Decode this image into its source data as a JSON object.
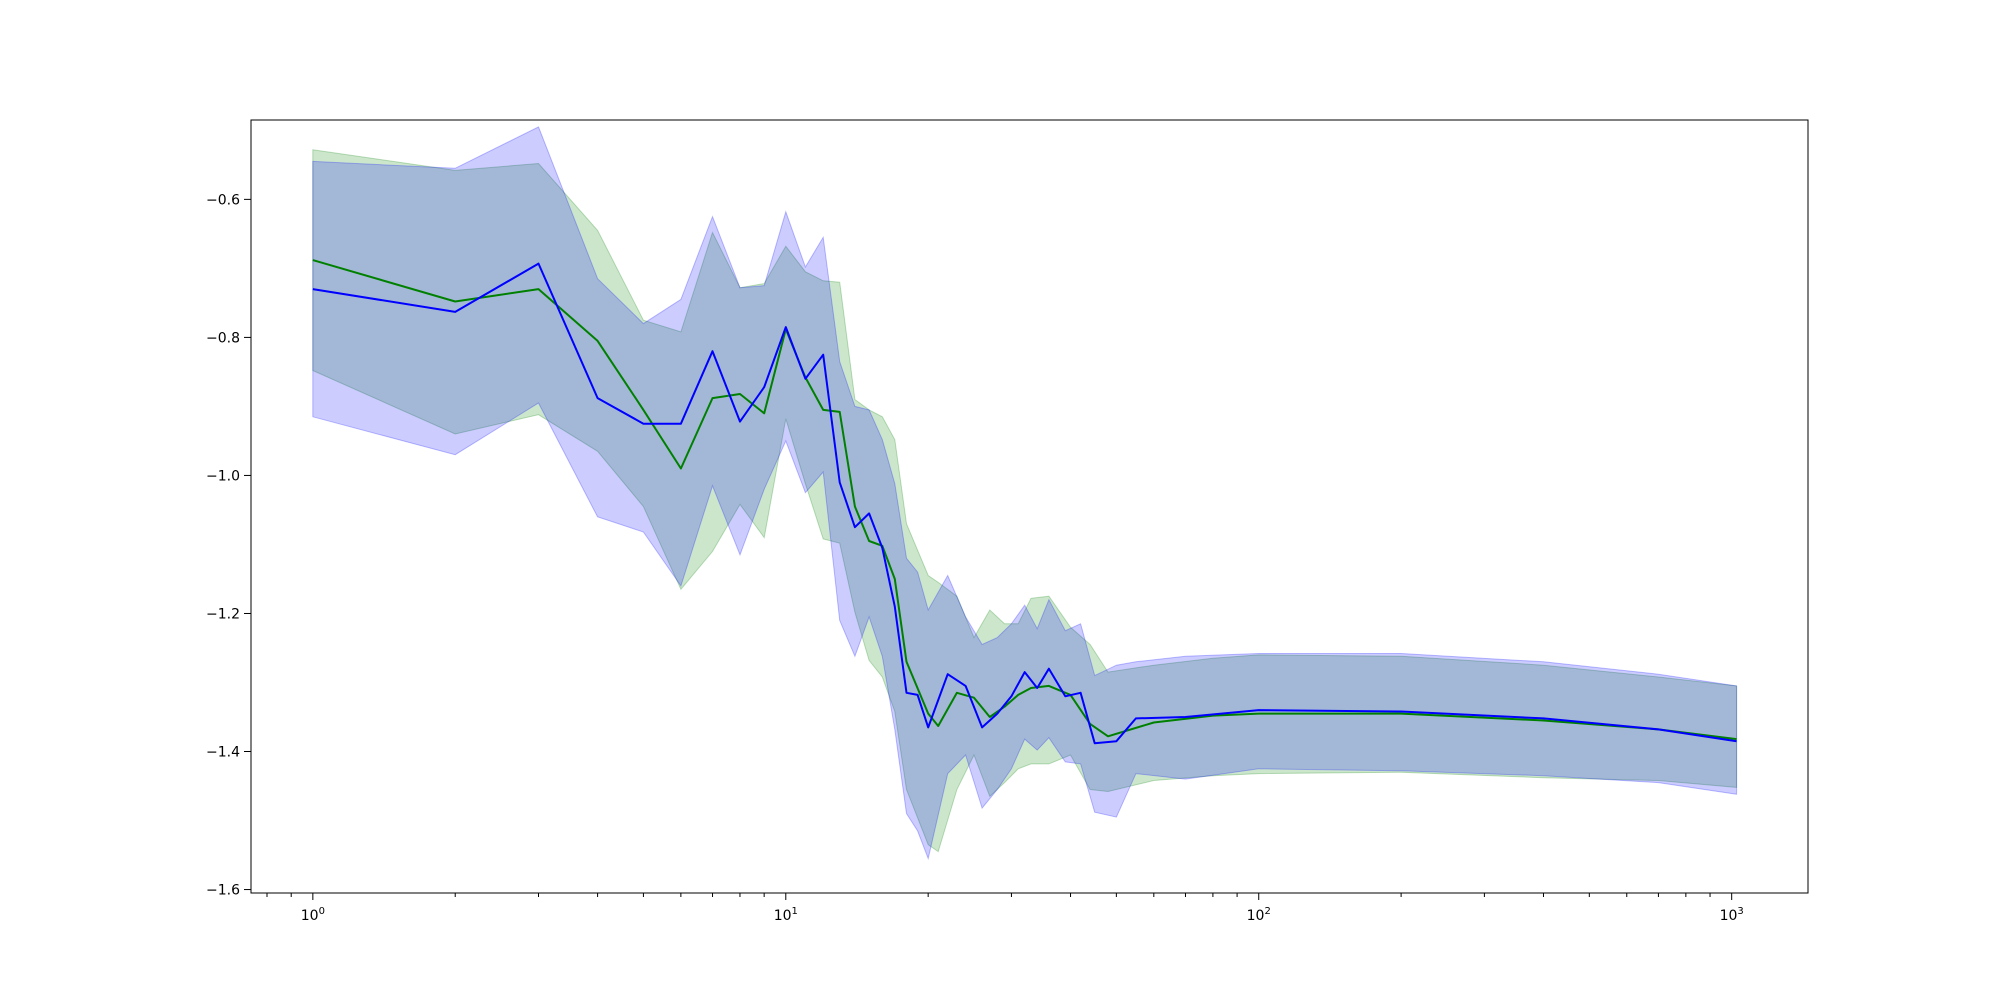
{
  "chart_data": {
    "type": "line",
    "title": "",
    "xlabel": "",
    "ylabel": "",
    "x_scale": "log",
    "xlim": [
      0.74,
      1450
    ],
    "ylim": [
      -1.605,
      -0.485
    ],
    "grid": false,
    "legend": "none",
    "x_major_ticks": [
      1,
      10,
      100,
      1000
    ],
    "x_tick_labels": [
      {
        "base": "10",
        "exp": "0"
      },
      {
        "base": "10",
        "exp": "1"
      },
      {
        "base": "10",
        "exp": "2"
      },
      {
        "base": "10",
        "exp": "3"
      }
    ],
    "y_ticks": [
      -1.6,
      -1.4,
      -1.2,
      -1.0,
      -0.8,
      -0.6
    ],
    "y_tick_labels": [
      "−1.6",
      "−1.4",
      "−1.2",
      "−1.0",
      "−0.8",
      "−0.6"
    ],
    "series": [
      {
        "color": "#008000",
        "band_color": "#008000",
        "band_opacity": 0.2,
        "points": [
          [
            1,
            -0.688
          ],
          [
            2,
            -0.748
          ],
          [
            3,
            -0.73
          ],
          [
            4,
            -0.805
          ],
          [
            5,
            -0.905
          ],
          [
            6,
            -0.99
          ],
          [
            7,
            -0.888
          ],
          [
            8,
            -0.882
          ],
          [
            9,
            -0.91
          ],
          [
            10,
            -0.788
          ],
          [
            11,
            -0.858
          ],
          [
            12,
            -0.905
          ],
          [
            13,
            -0.908
          ],
          [
            14,
            -1.045
          ],
          [
            15,
            -1.095
          ],
          [
            16,
            -1.102
          ],
          [
            17,
            -1.15
          ],
          [
            18,
            -1.27
          ],
          [
            20,
            -1.345
          ],
          [
            21,
            -1.363
          ],
          [
            23,
            -1.315
          ],
          [
            25,
            -1.322
          ],
          [
            27,
            -1.35
          ],
          [
            29,
            -1.335
          ],
          [
            31,
            -1.318
          ],
          [
            33,
            -1.308
          ],
          [
            36,
            -1.305
          ],
          [
            40,
            -1.318
          ],
          [
            44,
            -1.36
          ],
          [
            48,
            -1.378
          ],
          [
            60,
            -1.358
          ],
          [
            80,
            -1.348
          ],
          [
            100,
            -1.345
          ],
          [
            200,
            -1.345
          ],
          [
            400,
            -1.355
          ],
          [
            700,
            -1.368
          ],
          [
            1024,
            -1.382
          ]
        ],
        "upper": [
          [
            1,
            -0.528
          ],
          [
            2,
            -0.558
          ],
          [
            3,
            -0.548
          ],
          [
            4,
            -0.645
          ],
          [
            5,
            -0.775
          ],
          [
            6,
            -0.792
          ],
          [
            7,
            -0.648
          ],
          [
            8,
            -0.728
          ],
          [
            9,
            -0.722
          ],
          [
            10,
            -0.668
          ],
          [
            11,
            -0.705
          ],
          [
            12,
            -0.718
          ],
          [
            13,
            -0.72
          ],
          [
            14,
            -0.89
          ],
          [
            15,
            -0.905
          ],
          [
            16,
            -0.915
          ],
          [
            17,
            -0.948
          ],
          [
            18,
            -1.07
          ],
          [
            20,
            -1.145
          ],
          [
            21,
            -1.155
          ],
          [
            23,
            -1.175
          ],
          [
            25,
            -1.235
          ],
          [
            27,
            -1.195
          ],
          [
            29,
            -1.215
          ],
          [
            31,
            -1.215
          ],
          [
            33,
            -1.178
          ],
          [
            36,
            -1.175
          ],
          [
            40,
            -1.22
          ],
          [
            44,
            -1.245
          ],
          [
            48,
            -1.285
          ],
          [
            60,
            -1.275
          ],
          [
            80,
            -1.265
          ],
          [
            100,
            -1.26
          ],
          [
            200,
            -1.262
          ],
          [
            400,
            -1.275
          ],
          [
            700,
            -1.292
          ],
          [
            1024,
            -1.305
          ]
        ],
        "lower": [
          [
            1,
            -0.848
          ],
          [
            2,
            -0.94
          ],
          [
            3,
            -0.912
          ],
          [
            4,
            -0.965
          ],
          [
            5,
            -1.045
          ],
          [
            6,
            -1.165
          ],
          [
            7,
            -1.11
          ],
          [
            8,
            -1.042
          ],
          [
            9,
            -1.09
          ],
          [
            10,
            -0.918
          ],
          [
            11,
            -1.012
          ],
          [
            12,
            -1.092
          ],
          [
            13,
            -1.098
          ],
          [
            14,
            -1.198
          ],
          [
            15,
            -1.268
          ],
          [
            16,
            -1.292
          ],
          [
            17,
            -1.342
          ],
          [
            18,
            -1.455
          ],
          [
            20,
            -1.535
          ],
          [
            21,
            -1.545
          ],
          [
            23,
            -1.455
          ],
          [
            25,
            -1.405
          ],
          [
            27,
            -1.465
          ],
          [
            29,
            -1.445
          ],
          [
            31,
            -1.425
          ],
          [
            33,
            -1.418
          ],
          [
            36,
            -1.418
          ],
          [
            40,
            -1.405
          ],
          [
            44,
            -1.455
          ],
          [
            48,
            -1.458
          ],
          [
            60,
            -1.442
          ],
          [
            80,
            -1.435
          ],
          [
            100,
            -1.432
          ],
          [
            200,
            -1.43
          ],
          [
            400,
            -1.438
          ],
          [
            700,
            -1.442
          ],
          [
            1024,
            -1.452
          ]
        ]
      },
      {
        "color": "#0000ff",
        "band_color": "#0000ff",
        "band_opacity": 0.2,
        "points": [
          [
            1,
            -0.73
          ],
          [
            2,
            -0.763
          ],
          [
            3,
            -0.693
          ],
          [
            4,
            -0.888
          ],
          [
            5,
            -0.925
          ],
          [
            6,
            -0.925
          ],
          [
            7,
            -0.82
          ],
          [
            8,
            -0.922
          ],
          [
            9,
            -0.872
          ],
          [
            10,
            -0.785
          ],
          [
            11,
            -0.86
          ],
          [
            12,
            -0.825
          ],
          [
            13,
            -1.01
          ],
          [
            14,
            -1.075
          ],
          [
            15,
            -1.055
          ],
          [
            16,
            -1.105
          ],
          [
            17,
            -1.19
          ],
          [
            18,
            -1.315
          ],
          [
            19,
            -1.318
          ],
          [
            20,
            -1.365
          ],
          [
            22,
            -1.288
          ],
          [
            24,
            -1.305
          ],
          [
            26,
            -1.365
          ],
          [
            28,
            -1.345
          ],
          [
            30,
            -1.32
          ],
          [
            32,
            -1.285
          ],
          [
            34,
            -1.308
          ],
          [
            36,
            -1.28
          ],
          [
            39,
            -1.32
          ],
          [
            42,
            -1.315
          ],
          [
            45,
            -1.388
          ],
          [
            50,
            -1.385
          ],
          [
            55,
            -1.352
          ],
          [
            70,
            -1.35
          ],
          [
            100,
            -1.34
          ],
          [
            200,
            -1.342
          ],
          [
            400,
            -1.352
          ],
          [
            700,
            -1.368
          ],
          [
            1024,
            -1.385
          ]
        ],
        "upper": [
          [
            1,
            -0.545
          ],
          [
            2,
            -0.555
          ],
          [
            3,
            -0.495
          ],
          [
            4,
            -0.715
          ],
          [
            5,
            -0.78
          ],
          [
            6,
            -0.745
          ],
          [
            7,
            -0.625
          ],
          [
            8,
            -0.728
          ],
          [
            9,
            -0.725
          ],
          [
            10,
            -0.618
          ],
          [
            11,
            -0.698
          ],
          [
            12,
            -0.655
          ],
          [
            13,
            -0.835
          ],
          [
            14,
            -0.9
          ],
          [
            15,
            -0.905
          ],
          [
            16,
            -0.948
          ],
          [
            17,
            -1.012
          ],
          [
            18,
            -1.12
          ],
          [
            19,
            -1.14
          ],
          [
            20,
            -1.195
          ],
          [
            22,
            -1.145
          ],
          [
            24,
            -1.205
          ],
          [
            26,
            -1.245
          ],
          [
            28,
            -1.235
          ],
          [
            30,
            -1.215
          ],
          [
            32,
            -1.188
          ],
          [
            34,
            -1.222
          ],
          [
            36,
            -1.18
          ],
          [
            39,
            -1.225
          ],
          [
            42,
            -1.215
          ],
          [
            45,
            -1.29
          ],
          [
            50,
            -1.275
          ],
          [
            55,
            -1.27
          ],
          [
            70,
            -1.262
          ],
          [
            100,
            -1.258
          ],
          [
            200,
            -1.258
          ],
          [
            400,
            -1.27
          ],
          [
            700,
            -1.288
          ],
          [
            1024,
            -1.305
          ]
        ],
        "lower": [
          [
            1,
            -0.915
          ],
          [
            2,
            -0.97
          ],
          [
            3,
            -0.895
          ],
          [
            4,
            -1.06
          ],
          [
            5,
            -1.082
          ],
          [
            6,
            -1.16
          ],
          [
            7,
            -1.015
          ],
          [
            8,
            -1.115
          ],
          [
            9,
            -1.02
          ],
          [
            10,
            -0.95
          ],
          [
            11,
            -1.025
          ],
          [
            12,
            -0.995
          ],
          [
            13,
            -1.21
          ],
          [
            14,
            -1.262
          ],
          [
            15,
            -1.205
          ],
          [
            16,
            -1.262
          ],
          [
            17,
            -1.368
          ],
          [
            18,
            -1.49
          ],
          [
            19,
            -1.515
          ],
          [
            20,
            -1.555
          ],
          [
            22,
            -1.432
          ],
          [
            24,
            -1.405
          ],
          [
            26,
            -1.482
          ],
          [
            28,
            -1.455
          ],
          [
            30,
            -1.425
          ],
          [
            32,
            -1.382
          ],
          [
            34,
            -1.398
          ],
          [
            36,
            -1.38
          ],
          [
            39,
            -1.415
          ],
          [
            42,
            -1.418
          ],
          [
            45,
            -1.488
          ],
          [
            50,
            -1.495
          ],
          [
            55,
            -1.432
          ],
          [
            70,
            -1.44
          ],
          [
            100,
            -1.425
          ],
          [
            200,
            -1.428
          ],
          [
            400,
            -1.435
          ],
          [
            700,
            -1.445
          ],
          [
            1024,
            -1.462
          ]
        ]
      }
    ]
  }
}
